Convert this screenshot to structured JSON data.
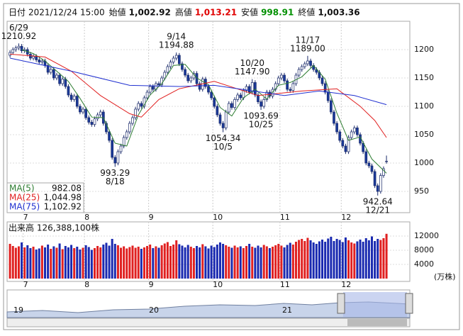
{
  "header": {
    "items": [
      {
        "label": "日付",
        "value": "2021/12/24 15:00"
      },
      {
        "label": "始値",
        "value": "1,002.92"
      },
      {
        "label": "高値",
        "value": "1,013.21"
      },
      {
        "label": "安値",
        "value": "998.91"
      },
      {
        "label": "終値",
        "value": "1,003.36"
      }
    ],
    "colors": [
      "#111111",
      "#111111",
      "#e00000",
      "#009000",
      "#111111"
    ]
  },
  "navigator": {
    "labels": [
      "19",
      "20",
      "21"
    ]
  },
  "chart_data": [
    {
      "type": "candlestick",
      "up_color": "#ffffff",
      "down_color": "#1a3a9a",
      "edge_color": "#1a2a6a",
      "grid": true,
      "xlim": [
        -1,
        137
      ],
      "xticks": [
        {
          "value": 4.5,
          "label": "7"
        },
        {
          "value": 25.5,
          "label": "8"
        },
        {
          "value": 47.5,
          "label": "9"
        },
        {
          "value": 69.5,
          "label": "10"
        },
        {
          "value": 92.5,
          "label": "11"
        },
        {
          "value": 113.5,
          "label": "12"
        }
      ],
      "ylim": [
        912.5,
        1250
      ],
      "yticks": [
        950,
        1000,
        1050,
        1100,
        1150,
        1200
      ],
      "ohlc": [
        [
          1190,
          1199,
          1186,
          1195
        ],
        [
          1195,
          1204,
          1191,
          1200
        ],
        [
          1200,
          1207,
          1196,
          1203
        ],
        [
          1203,
          1210.92,
          1199,
          1206
        ],
        [
          1206,
          1210,
          1194,
          1198
        ],
        [
          1198,
          1204,
          1194,
          1200
        ],
        [
          1200,
          1204,
          1188,
          1192
        ],
        [
          1192,
          1196,
          1181,
          1185
        ],
        [
          1185,
          1192,
          1181,
          1188
        ],
        [
          1188,
          1192,
          1178,
          1182
        ],
        [
          1182,
          1186,
          1174,
          1178
        ],
        [
          1178,
          1184,
          1174,
          1180
        ],
        [
          1180,
          1184,
          1168,
          1172
        ],
        [
          1172,
          1176,
          1156,
          1160
        ],
        [
          1160,
          1169,
          1156,
          1165
        ],
        [
          1165,
          1169,
          1146,
          1150
        ],
        [
          1150,
          1159,
          1146,
          1155
        ],
        [
          1155,
          1159,
          1136,
          1140
        ],
        [
          1140,
          1152,
          1136,
          1148
        ],
        [
          1148,
          1152,
          1131,
          1135
        ],
        [
          1135,
          1139,
          1116,
          1120
        ],
        [
          1120,
          1124,
          1108,
          1112
        ],
        [
          1112,
          1122,
          1108,
          1118
        ],
        [
          1118,
          1122,
          1096,
          1100
        ],
        [
          1100,
          1104,
          1086,
          1090
        ],
        [
          1090,
          1099,
          1086,
          1095
        ],
        [
          1095,
          1099,
          1076,
          1080
        ],
        [
          1080,
          1084,
          1068,
          1072
        ],
        [
          1072,
          1076,
          1064,
          1068
        ],
        [
          1068,
          1082,
          1064,
          1078
        ],
        [
          1078,
          1089,
          1074,
          1085
        ],
        [
          1085,
          1094,
          1081,
          1090
        ],
        [
          1090,
          1094,
          1066,
          1070
        ],
        [
          1070,
          1074,
          1051,
          1055
        ],
        [
          1055,
          1059,
          1036,
          1040
        ],
        [
          1040,
          1044,
          1006,
          1010
        ],
        [
          1010,
          1014,
          993.29,
          1000
        ],
        [
          1000,
          1024,
          996,
          1020
        ],
        [
          1020,
          1034,
          1016,
          1030
        ],
        [
          1030,
          1049,
          1026,
          1045
        ],
        [
          1045,
          1059,
          1041,
          1055
        ],
        [
          1055,
          1074,
          1051,
          1070
        ],
        [
          1070,
          1084,
          1066,
          1080
        ],
        [
          1080,
          1099,
          1076,
          1095
        ],
        [
          1095,
          1109,
          1091,
          1105
        ],
        [
          1105,
          1109,
          1096,
          1100
        ],
        [
          1100,
          1119,
          1096,
          1115
        ],
        [
          1115,
          1129,
          1111,
          1125
        ],
        [
          1125,
          1139,
          1121,
          1135
        ],
        [
          1135,
          1139,
          1126,
          1130
        ],
        [
          1130,
          1144,
          1126,
          1140
        ],
        [
          1140,
          1144,
          1134,
          1138
        ],
        [
          1138,
          1154,
          1134,
          1150
        ],
        [
          1150,
          1164,
          1146,
          1160
        ],
        [
          1160,
          1174,
          1156,
          1170
        ],
        [
          1170,
          1182,
          1166,
          1178
        ],
        [
          1178,
          1189,
          1174,
          1185
        ],
        [
          1185,
          1194.88,
          1181,
          1190
        ],
        [
          1190,
          1194,
          1171,
          1175
        ],
        [
          1175,
          1179,
          1161,
          1165
        ],
        [
          1165,
          1169,
          1151,
          1155
        ],
        [
          1155,
          1159,
          1141,
          1145
        ],
        [
          1145,
          1154,
          1141,
          1150
        ],
        [
          1150,
          1162,
          1146,
          1158
        ],
        [
          1158,
          1162,
          1136,
          1140
        ],
        [
          1140,
          1144,
          1126,
          1130
        ],
        [
          1130,
          1152,
          1126,
          1148
        ],
        [
          1148,
          1152,
          1131,
          1135
        ],
        [
          1135,
          1139,
          1121,
          1125
        ],
        [
          1125,
          1129,
          1111,
          1115
        ],
        [
          1115,
          1119,
          1096,
          1100
        ],
        [
          1100,
          1104,
          1081,
          1085
        ],
        [
          1085,
          1089,
          1066,
          1070
        ],
        [
          1070,
          1074,
          1054.34,
          1062
        ],
        [
          1062,
          1094,
          1058,
          1090
        ],
        [
          1090,
          1109,
          1086,
          1105
        ],
        [
          1105,
          1109,
          1094,
          1098
        ],
        [
          1098,
          1116,
          1094,
          1112
        ],
        [
          1112,
          1124,
          1108,
          1120
        ],
        [
          1120,
          1124,
          1111,
          1115
        ],
        [
          1115,
          1132,
          1111,
          1128
        ],
        [
          1128,
          1139,
          1124,
          1135
        ],
        [
          1135,
          1139,
          1121,
          1125
        ],
        [
          1125,
          1147.9,
          1121,
          1142
        ],
        [
          1142,
          1146,
          1116,
          1120
        ],
        [
          1120,
          1124,
          1104,
          1108
        ],
        [
          1108,
          1112,
          1093.69,
          1100
        ],
        [
          1100,
          1116,
          1096,
          1112
        ],
        [
          1112,
          1129,
          1108,
          1125
        ],
        [
          1125,
          1129,
          1114,
          1118
        ],
        [
          1118,
          1134,
          1114,
          1130
        ],
        [
          1130,
          1144,
          1126,
          1140
        ],
        [
          1140,
          1154,
          1136,
          1150
        ],
        [
          1150,
          1159,
          1146,
          1155
        ],
        [
          1155,
          1159,
          1141,
          1145
        ],
        [
          1145,
          1149,
          1126,
          1130
        ],
        [
          1130,
          1134,
          1124,
          1128
        ],
        [
          1128,
          1144,
          1124,
          1140
        ],
        [
          1140,
          1159,
          1136,
          1155
        ],
        [
          1155,
          1169,
          1151,
          1165
        ],
        [
          1165,
          1174,
          1161,
          1170
        ],
        [
          1170,
          1179,
          1166,
          1175
        ],
        [
          1175,
          1189,
          1171,
          1180
        ],
        [
          1180,
          1184,
          1168,
          1172
        ],
        [
          1172,
          1176,
          1161,
          1165
        ],
        [
          1165,
          1169,
          1156,
          1160
        ],
        [
          1160,
          1164,
          1146,
          1150
        ],
        [
          1150,
          1154,
          1136,
          1140
        ],
        [
          1140,
          1144,
          1121,
          1125
        ],
        [
          1125,
          1129,
          1106,
          1110
        ],
        [
          1110,
          1114,
          1086,
          1090
        ],
        [
          1090,
          1094,
          1066,
          1070
        ],
        [
          1070,
          1074,
          1051,
          1055
        ],
        [
          1055,
          1059,
          1036,
          1040
        ],
        [
          1040,
          1044,
          1026,
          1030
        ],
        [
          1030,
          1034,
          1016,
          1020
        ],
        [
          1020,
          1049,
          1016,
          1045
        ],
        [
          1045,
          1059,
          1041,
          1055
        ],
        [
          1055,
          1066,
          1051,
          1062
        ],
        [
          1062,
          1066,
          1046,
          1050
        ],
        [
          1050,
          1054,
          1031,
          1035
        ],
        [
          1035,
          1039,
          1016,
          1020
        ],
        [
          1020,
          1024,
          996,
          1000
        ],
        [
          1000,
          1004,
          991,
          995
        ],
        [
          995,
          999,
          981,
          985
        ],
        [
          985,
          989,
          956,
          960
        ],
        [
          960,
          964,
          942.64,
          950
        ],
        [
          950,
          982,
          946,
          978
        ],
        [
          978,
          994,
          974,
          990
        ],
        [
          1002.92,
          1013.21,
          998.91,
          1003.36
        ]
      ],
      "series": [
        {
          "name": "MA(5)",
          "color": "#2e7d32",
          "last_label": "982.08",
          "x": [
            4,
            8,
            12,
            16,
            20,
            24,
            28,
            32,
            36,
            40,
            44,
            48,
            52,
            56,
            60,
            64,
            68,
            72,
            76,
            80,
            84,
            88,
            92,
            96,
            100,
            104,
            108,
            112,
            116,
            120,
            124,
            129
          ],
          "values": [
            1200,
            1193,
            1180,
            1162,
            1144,
            1114,
            1081,
            1080,
            1035,
            1030,
            1085,
            1120,
            1140,
            1172,
            1174,
            1150,
            1138,
            1098,
            1083,
            1115,
            1130,
            1113,
            1137,
            1142,
            1152,
            1172,
            1148,
            1088,
            1040,
            1046,
            1007,
            982.08
          ]
        },
        {
          "name": "MA(25)",
          "color": "#e02020",
          "last_label": "1,044.98",
          "x": [
            0,
            12,
            21,
            31,
            41,
            45,
            51,
            58,
            70,
            85,
            100,
            112,
            120,
            125,
            129
          ],
          "values": [
            1192,
            1187,
            1162,
            1119,
            1087,
            1081,
            1112,
            1131,
            1144,
            1119,
            1127,
            1131,
            1100,
            1075,
            1044.98
          ]
        },
        {
          "name": "MA(75)",
          "color": "#2030d0",
          "last_label": "1,102.92",
          "x": [
            0,
            21,
            41,
            58,
            70,
            94,
            106,
            118,
            129
          ],
          "values": [
            1185,
            1162,
            1137,
            1135,
            1137,
            1119,
            1127,
            1119,
            1102.92
          ]
        }
      ],
      "annotations": [
        {
          "x": 3,
          "date": "6/29",
          "price": "1210.92"
        },
        {
          "x": 36,
          "date": "8/18",
          "price": "993.29"
        },
        {
          "x": 57,
          "date": "9/14",
          "price": "1194.88"
        },
        {
          "x": 73,
          "date": "10/5",
          "price": "1054.34"
        },
        {
          "x": 83,
          "date": "10/20",
          "price": "1147.90"
        },
        {
          "x": 86,
          "date": "10/25",
          "price": "1093.69"
        },
        {
          "x": 102,
          "date": "11/17",
          "price": "1189.00"
        },
        {
          "x": 126,
          "date": "12/21",
          "price": "942.64"
        }
      ]
    },
    {
      "type": "bar",
      "title": "出来高 126,388,100株",
      "unit": "(万株)",
      "up_color": "#e02020",
      "down_color": "#1a2ab0",
      "grid": true,
      "xlim": [
        -1,
        137
      ],
      "xticks": [
        {
          "value": 4.5,
          "label": "7"
        },
        {
          "value": 25.5,
          "label": "8"
        },
        {
          "value": 47.5,
          "label": "9"
        },
        {
          "value": 69.5,
          "label": "10"
        },
        {
          "value": 92.5,
          "label": "11"
        },
        {
          "value": 113.5,
          "label": "12"
        }
      ],
      "ylim": [
        0,
        15600
      ],
      "yticks": [
        4000,
        8000,
        12000
      ],
      "values": [
        9800,
        9200,
        8700,
        9100,
        10200,
        8800,
        9400,
        8600,
        9000,
        8200,
        8500,
        9300,
        8800,
        9600,
        8400,
        9100,
        8700,
        9900,
        8300,
        9200,
        8800,
        9500,
        8600,
        9000,
        8200,
        8700,
        9400,
        8900,
        8100,
        8600,
        9200,
        8800,
        9600,
        10100,
        9300,
        11200,
        9800,
        9400,
        8700,
        9100,
        8500,
        8900,
        9300,
        8700,
        9000,
        8400,
        8800,
        9200,
        9600,
        8600,
        9100,
        8700,
        9400,
        9900,
        10300,
        9200,
        9600,
        10800,
        9700,
        9300,
        8800,
        9500,
        9000,
        8600,
        9200,
        8800,
        9700,
        9100,
        8500,
        9300,
        8900,
        9600,
        10200,
        9800,
        9400,
        9000,
        8700,
        9300,
        8800,
        9100,
        8600,
        9200,
        9800,
        9000,
        8700,
        9300,
        8800,
        9500,
        9100,
        8600,
        9000,
        9400,
        9800,
        9300,
        8800,
        9500,
        10100,
        9600,
        10400,
        10900,
        11200,
        10600,
        11500,
        10800,
        10200,
        9800,
        10500,
        11000,
        10400,
        11300,
        11800,
        10600,
        11200,
        10900,
        10300,
        11600,
        10800,
        10200,
        9900,
        10500,
        11000,
        10400,
        11400,
        10800,
        11900,
        10600,
        11200,
        10900,
        11400,
        12638.81
      ]
    }
  ]
}
